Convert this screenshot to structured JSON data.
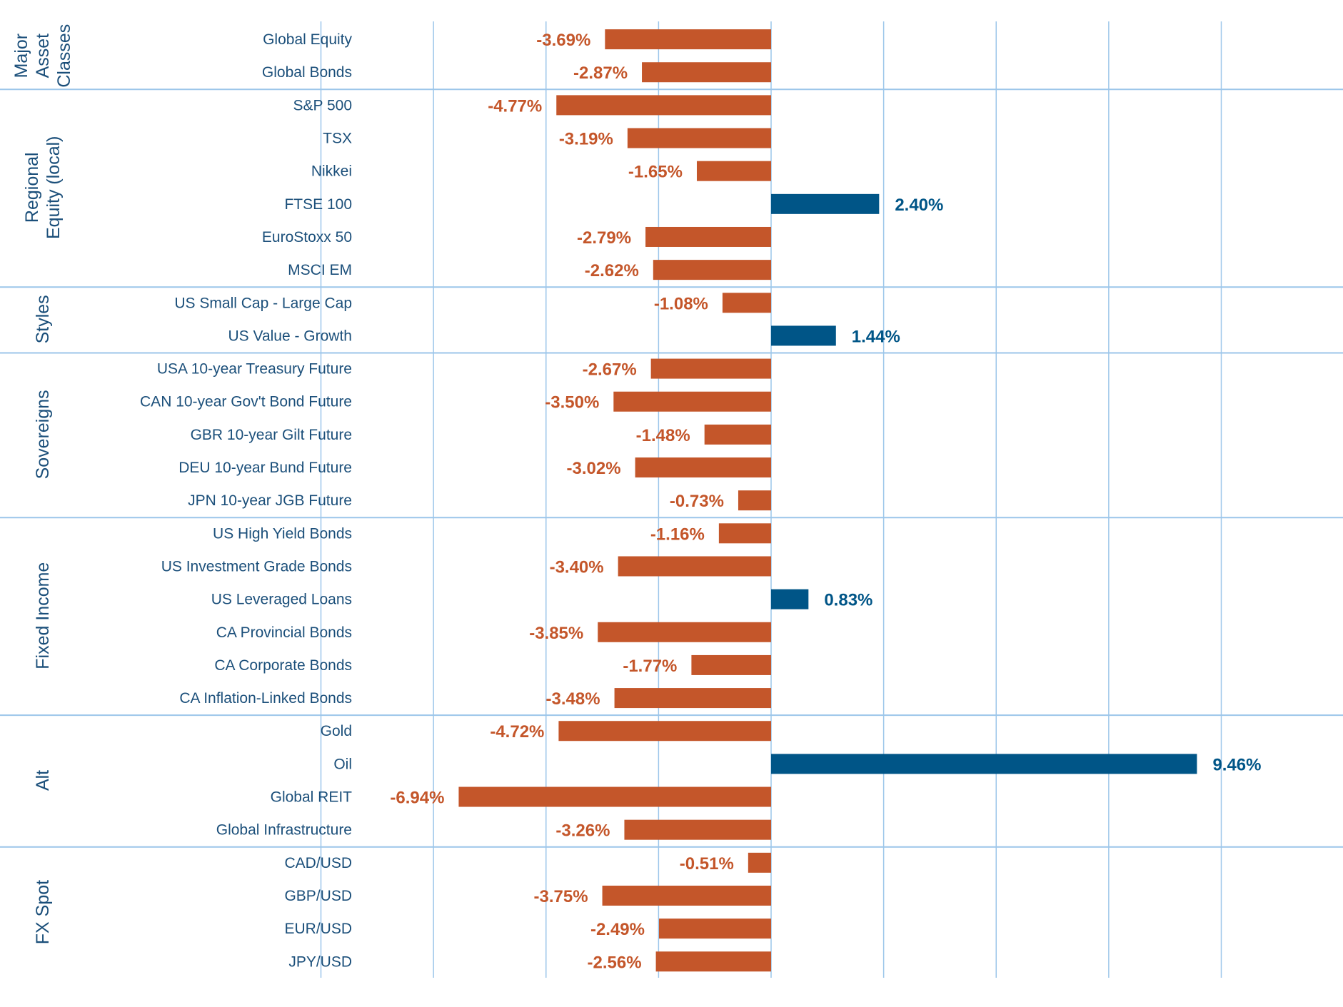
{
  "chart_data": {
    "type": "bar",
    "orientation": "horizontal",
    "xlim": [
      -10,
      10
    ],
    "gridlines_at": [
      -10,
      -7.5,
      -5,
      -2.5,
      0,
      2.5,
      5,
      7.5,
      10
    ],
    "colors": {
      "positive": "#005587",
      "negative": "#c4562a",
      "grid": "#9cc6ea",
      "label": "#1b4f7a"
    },
    "groups": [
      {
        "name": [
          "Major",
          "Asset",
          "Classes"
        ],
        "items": [
          {
            "label": "Global Equity",
            "value": -3.69,
            "value_label": "-3.69%"
          },
          {
            "label": "Global Bonds",
            "value": -2.87,
            "value_label": "-2.87%"
          }
        ]
      },
      {
        "name": [
          "Regional",
          "Equity (local)"
        ],
        "items": [
          {
            "label": "S&P 500",
            "value": -4.77,
            "value_label": "-4.77%"
          },
          {
            "label": "TSX",
            "value": -3.19,
            "value_label": "-3.19%"
          },
          {
            "label": "Nikkei",
            "value": -1.65,
            "value_label": "-1.65%"
          },
          {
            "label": "FTSE 100",
            "value": 2.4,
            "value_label": "2.40%"
          },
          {
            "label": "EuroStoxx 50",
            "value": -2.79,
            "value_label": "-2.79%"
          },
          {
            "label": "MSCI EM",
            "value": -2.62,
            "value_label": "-2.62%"
          }
        ]
      },
      {
        "name": [
          "Styles"
        ],
        "items": [
          {
            "label": "US Small Cap - Large Cap",
            "value": -1.08,
            "value_label": "-1.08%"
          },
          {
            "label": "US Value - Growth",
            "value": 1.44,
            "value_label": "1.44%"
          }
        ]
      },
      {
        "name": [
          "Sovereigns"
        ],
        "items": [
          {
            "label": "USA 10-year Treasury Future",
            "value": -2.67,
            "value_label": "-2.67%"
          },
          {
            "label": "CAN 10-year Gov't Bond Future",
            "value": -3.5,
            "value_label": "-3.50%"
          },
          {
            "label": "GBR 10-year Gilt Future",
            "value": -1.48,
            "value_label": "-1.48%"
          },
          {
            "label": "DEU 10-year Bund Future",
            "value": -3.02,
            "value_label": "-3.02%"
          },
          {
            "label": "JPN 10-year JGB Future",
            "value": -0.73,
            "value_label": "-0.73%"
          }
        ]
      },
      {
        "name": [
          "Fixed Income"
        ],
        "items": [
          {
            "label": "US High Yield Bonds",
            "value": -1.16,
            "value_label": "-1.16%"
          },
          {
            "label": "US Investment Grade Bonds",
            "value": -3.4,
            "value_label": "-3.40%"
          },
          {
            "label": "US Leveraged Loans",
            "value": 0.83,
            "value_label": "0.83%"
          },
          {
            "label": "CA Provincial Bonds",
            "value": -3.85,
            "value_label": "-3.85%"
          },
          {
            "label": "CA Corporate Bonds",
            "value": -1.77,
            "value_label": "-1.77%"
          },
          {
            "label": "CA Inflation-Linked Bonds",
            "value": -3.48,
            "value_label": "-3.48%"
          }
        ]
      },
      {
        "name": [
          "Alt"
        ],
        "items": [
          {
            "label": "Gold",
            "value": -4.72,
            "value_label": "-4.72%"
          },
          {
            "label": "Oil",
            "value": 9.46,
            "value_label": "9.46%"
          },
          {
            "label": "Global REIT",
            "value": -6.94,
            "value_label": "-6.94%"
          },
          {
            "label": "Global Infrastructure",
            "value": -3.26,
            "value_label": "-3.26%"
          }
        ]
      },
      {
        "name": [
          "FX Spot"
        ],
        "items": [
          {
            "label": "CAD/USD",
            "value": -0.51,
            "value_label": "-0.51%"
          },
          {
            "label": "GBP/USD",
            "value": -3.75,
            "value_label": "-3.75%"
          },
          {
            "label": "EUR/USD",
            "value": -2.49,
            "value_label": "-2.49%"
          },
          {
            "label": "JPY/USD",
            "value": -2.56,
            "value_label": "-2.56%"
          }
        ]
      }
    ]
  }
}
